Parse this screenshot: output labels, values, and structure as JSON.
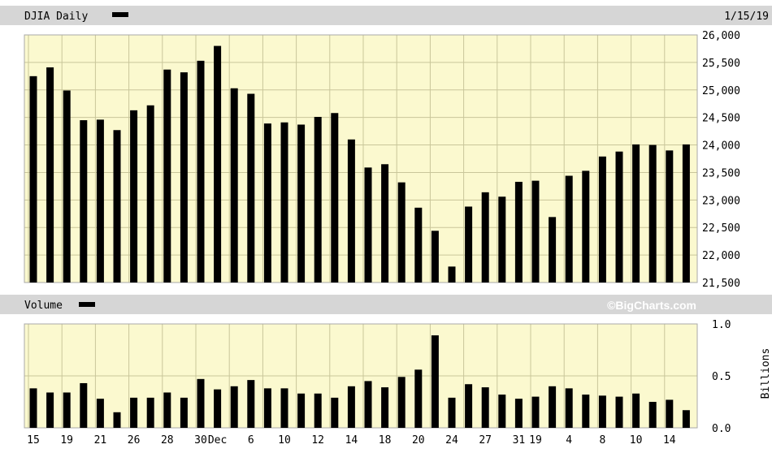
{
  "chart_data": [
    {
      "type": "bar",
      "title": "DJIA Daily",
      "date_label": "1/15/19",
      "brand": "©BigCharts.com",
      "ylim": [
        21500,
        26000
      ],
      "yticks": [
        "26,000",
        "25,500",
        "25,000",
        "24,500",
        "24,000",
        "23,500",
        "23,000",
        "22,500",
        "22,000",
        "21,500"
      ],
      "ytick_values": [
        26000,
        25500,
        25000,
        24500,
        24000,
        23500,
        23000,
        22500,
        22000,
        21500
      ],
      "grid": true,
      "values": [
        25250,
        25410,
        24990,
        24450,
        24460,
        24270,
        24630,
        24720,
        25370,
        25320,
        25530,
        25800,
        25030,
        24930,
        24390,
        24410,
        24370,
        24510,
        24580,
        24100,
        23590,
        23650,
        23320,
        22860,
        22440,
        21790,
        22880,
        23140,
        23060,
        23330,
        23350,
        22690,
        23440,
        23530,
        23790,
        23880,
        24010,
        24000,
        23900,
        24010
      ]
    },
    {
      "type": "bar",
      "title": "Volume",
      "ylabel": "Billions",
      "ylim": [
        0.0,
        1.0
      ],
      "yticks": [
        "1.0",
        "0.5",
        "0.0"
      ],
      "ytick_values": [
        1.0,
        0.5,
        0.0
      ],
      "grid": true,
      "xtick_labels": [
        {
          "label": "15",
          "index": 0
        },
        {
          "label": "19",
          "index": 2
        },
        {
          "label": "21",
          "index": 4
        },
        {
          "label": "26",
          "index": 6
        },
        {
          "label": "28",
          "index": 8
        },
        {
          "label": "30",
          "index": 10
        },
        {
          "label": "Dec",
          "index": 11
        },
        {
          "label": "6",
          "index": 13
        },
        {
          "label": "10",
          "index": 15
        },
        {
          "label": "12",
          "index": 17
        },
        {
          "label": "14",
          "index": 19
        },
        {
          "label": "18",
          "index": 21
        },
        {
          "label": "20",
          "index": 23
        },
        {
          "label": "24",
          "index": 25
        },
        {
          "label": "27",
          "index": 27
        },
        {
          "label": "31",
          "index": 29
        },
        {
          "label": "19",
          "index": 30
        },
        {
          "label": "4",
          "index": 32
        },
        {
          "label": "8",
          "index": 34
        },
        {
          "label": "10",
          "index": 36
        },
        {
          "label": "14",
          "index": 38
        }
      ],
      "values": [
        0.38,
        0.34,
        0.34,
        0.43,
        0.28,
        0.15,
        0.29,
        0.29,
        0.34,
        0.29,
        0.47,
        0.37,
        0.4,
        0.46,
        0.38,
        0.38,
        0.33,
        0.33,
        0.29,
        0.4,
        0.45,
        0.39,
        0.49,
        0.56,
        0.89,
        0.29,
        0.42,
        0.39,
        0.32,
        0.28,
        0.3,
        0.4,
        0.38,
        0.32,
        0.31,
        0.3,
        0.33,
        0.25,
        0.27,
        0.17
      ]
    }
  ]
}
